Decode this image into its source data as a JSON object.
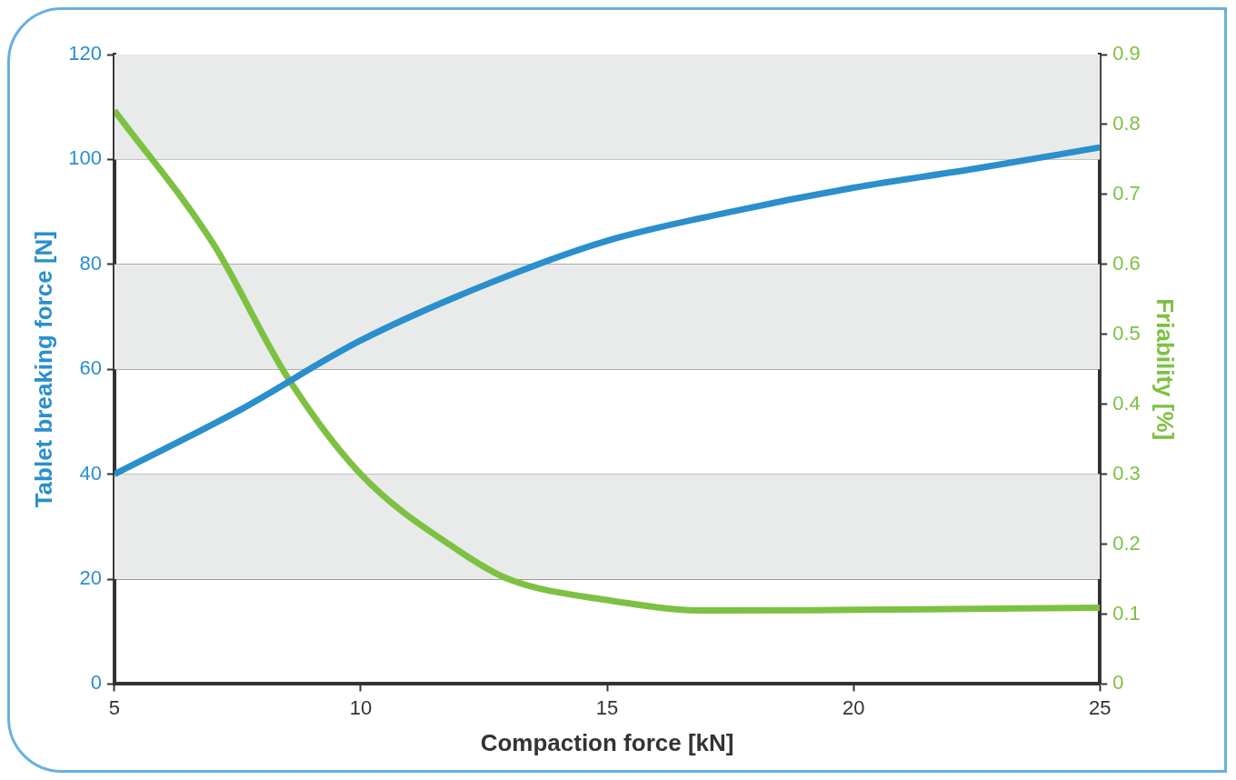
{
  "chart_data": {
    "type": "line",
    "xlabel": "Compaction force [kN]",
    "ylabel": "Tablet breaking force [N]",
    "y2label": "Friability [%]",
    "xlim": [
      5,
      25
    ],
    "xticks": [
      5,
      10,
      15,
      20,
      25
    ],
    "ylim": [
      0,
      120
    ],
    "yticks": [
      0,
      20,
      40,
      60,
      80,
      100,
      120
    ],
    "y2lim": [
      0,
      0.9
    ],
    "y2ticks": [
      0,
      0.1,
      0.2,
      0.3,
      0.4,
      0.5,
      0.6,
      0.7,
      0.8,
      0.9
    ],
    "grid": "y",
    "legend": false,
    "marker": "none",
    "line_style": "solid",
    "bands": [
      {
        "axis": "y",
        "from": 20,
        "to": 40,
        "color": "#e9ebeb"
      },
      {
        "axis": "y",
        "from": 60,
        "to": 80,
        "color": "#e9ebeb"
      },
      {
        "axis": "y",
        "from": 100,
        "to": 120,
        "color": "#e9ebeb"
      }
    ],
    "series": [
      {
        "color": "#2a8fcc",
        "x": [
          5,
          7.5,
          10,
          12.5,
          15,
          17.5,
          20,
          22.5,
          25
        ],
        "values": [
          40,
          52,
          65.5,
          76,
          84.5,
          90,
          94.6,
          98.3,
          102.3
        ]
      },
      {
        "color": "#7dc142",
        "axis": "y2",
        "x": [
          5,
          7,
          8.5,
          10,
          12,
          13,
          15,
          17,
          20,
          25
        ],
        "values": [
          0.82,
          0.63,
          0.44,
          0.3,
          0.19,
          0.15,
          0.12,
          0.105,
          0.106,
          0.109
        ]
      }
    ]
  }
}
